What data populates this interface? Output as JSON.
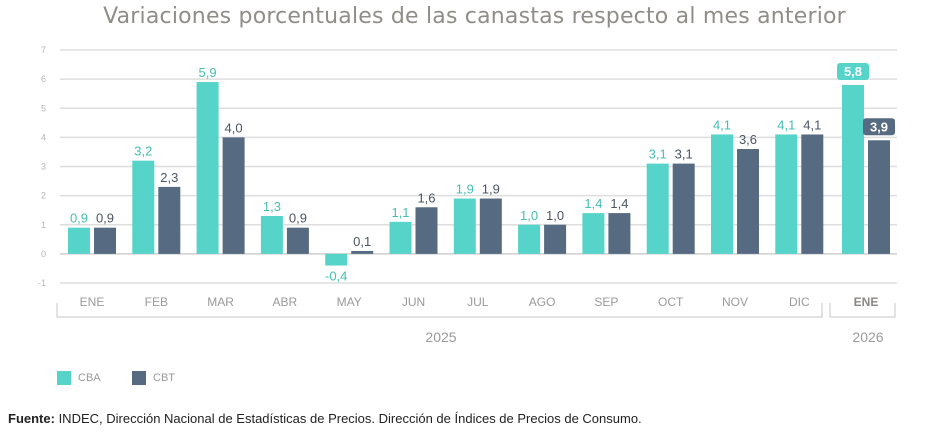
{
  "chart_data": {
    "type": "bar",
    "title": "Variaciones porcentuales de las canastas respecto al mes anterior",
    "xlabel": "",
    "ylabel": "",
    "ylim": [
      -1,
      7
    ],
    "yticks": [
      7,
      6,
      5,
      4,
      3,
      2,
      1,
      0,
      -1
    ],
    "grid": true,
    "categories": [
      "ENE",
      "FEB",
      "MAR",
      "ABR",
      "MAY",
      "JUN",
      "JUL",
      "AGO",
      "SEP",
      "OCT",
      "NOV",
      "DIC",
      "ENE"
    ],
    "category_years": [
      "2025",
      "2025",
      "2025",
      "2025",
      "2025",
      "2025",
      "2025",
      "2025",
      "2025",
      "2025",
      "2025",
      "2025",
      "2026"
    ],
    "year_groups": [
      {
        "label": "2025",
        "start": 0,
        "end": 11
      },
      {
        "label": "2026",
        "start": 12,
        "end": 12
      }
    ],
    "highlight_index": 12,
    "series": [
      {
        "name": "CBA",
        "color": "#56d4c9",
        "label_color": "#47bdb3",
        "values": [
          0.9,
          3.2,
          5.9,
          1.3,
          -0.4,
          1.1,
          1.9,
          1.0,
          1.4,
          3.1,
          4.1,
          4.1,
          5.8
        ],
        "labels": [
          "0,9",
          "3,2",
          "5,9",
          "1,3",
          "-0,4",
          "1,1",
          "1,9",
          "1,0",
          "1,4",
          "3,1",
          "4,1",
          "4,1",
          "5,8"
        ]
      },
      {
        "name": "CBT",
        "color": "#566a82",
        "label_color": "#4a5566",
        "values": [
          0.9,
          2.3,
          4.0,
          0.9,
          0.1,
          1.6,
          1.9,
          1.0,
          1.4,
          3.1,
          3.6,
          4.1,
          3.9
        ],
        "labels": [
          "0,9",
          "2,3",
          "4,0",
          "0,9",
          "0,1",
          "1,6",
          "1,9",
          "1,0",
          "1,4",
          "3,1",
          "3,6",
          "4,1",
          "3,9"
        ]
      }
    ],
    "legend": {
      "position": "bottom-left",
      "entries": [
        "CBA",
        "CBT"
      ]
    }
  },
  "source": {
    "label": "Fuente:",
    "text": " INDEC, Dirección Nacional de Estadísticas de Precios. Dirección de Índices de Precios de Consumo."
  }
}
